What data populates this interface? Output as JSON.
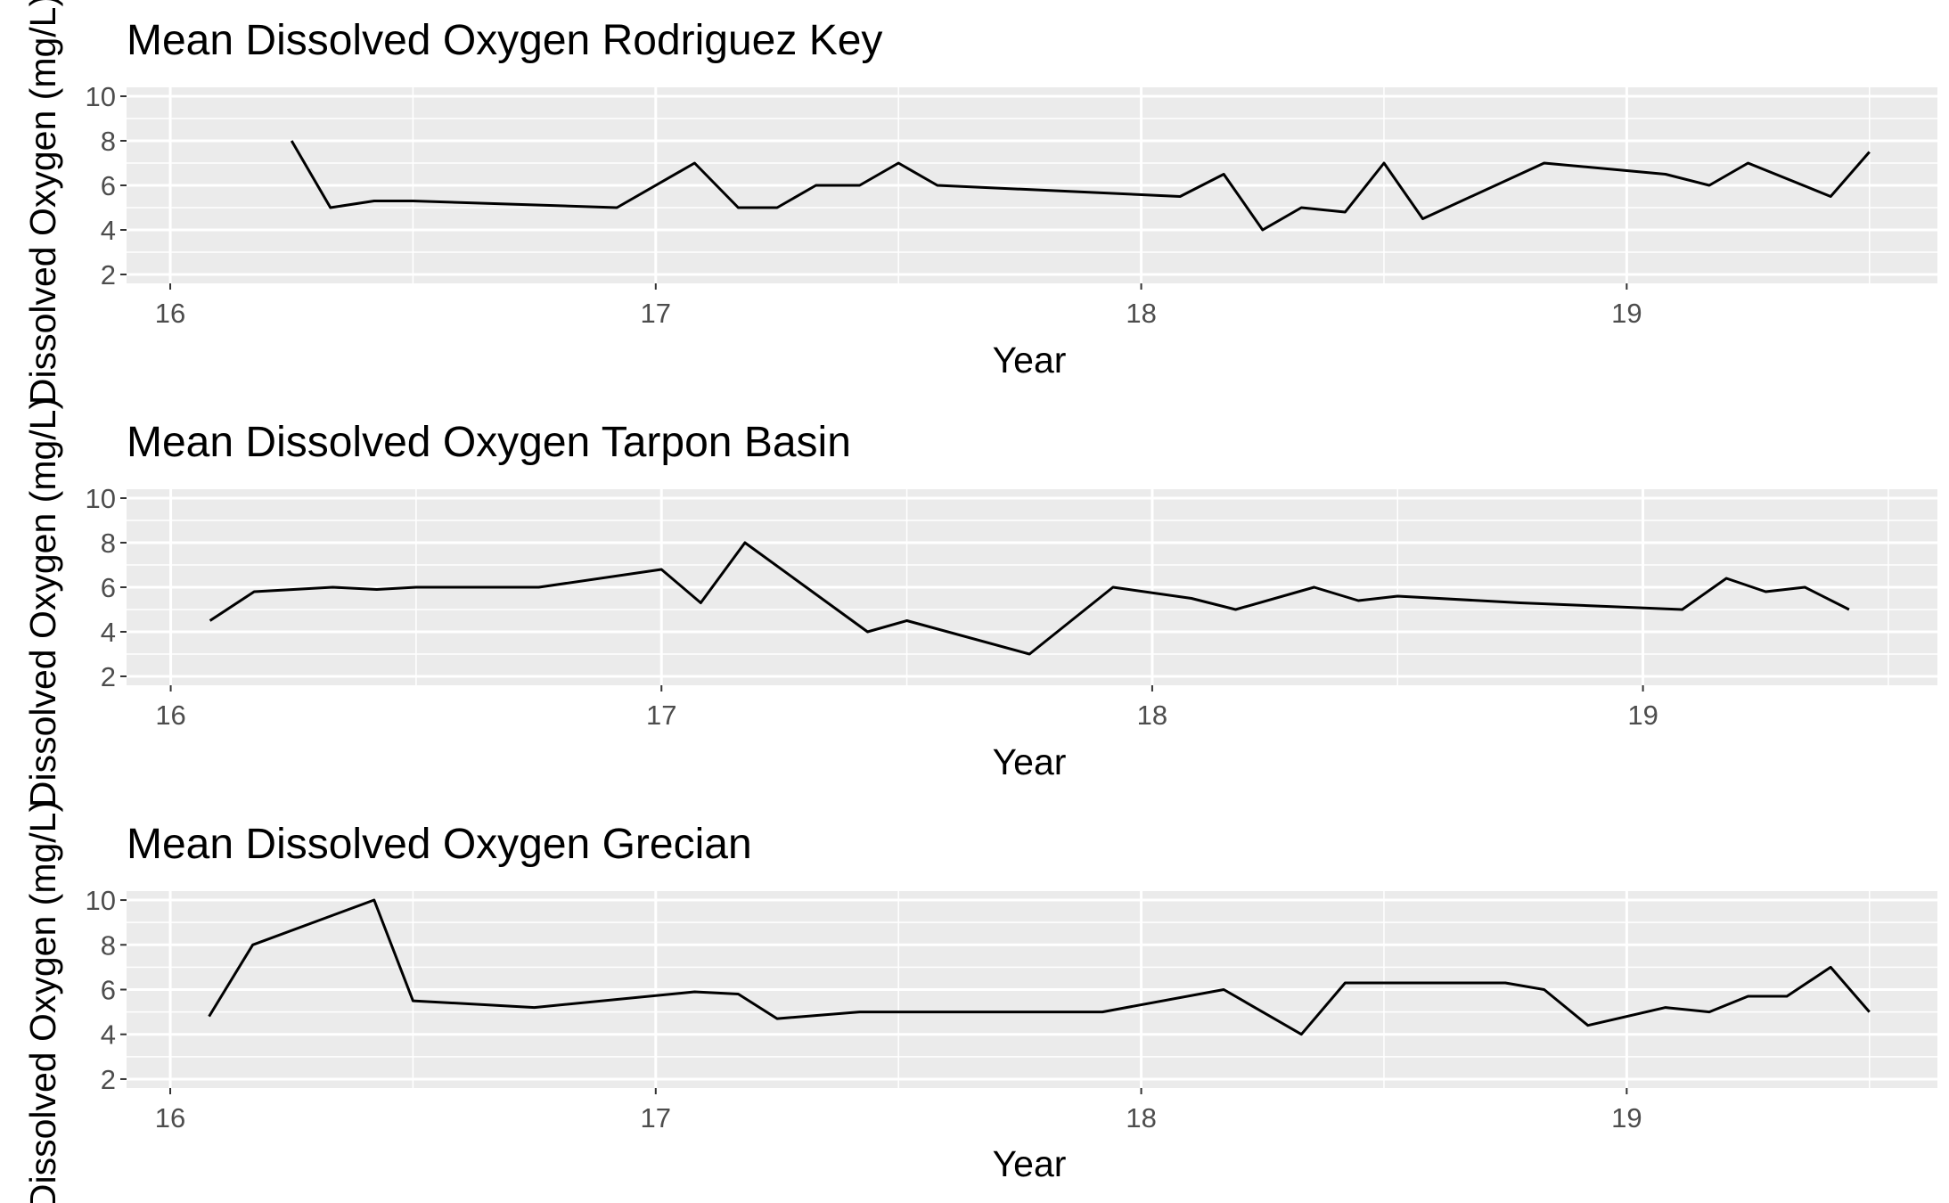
{
  "chart_data": [
    {
      "type": "line",
      "title": "Mean Dissolved Oxygen Rodriguez Key",
      "xlabel": "Year",
      "ylabel": "Dissolved Oxygen (mg/L)",
      "xlim": [
        15.91,
        19.64
      ],
      "ylim": [
        1.6,
        10.4
      ],
      "xticks": [
        16,
        17,
        18,
        19
      ],
      "yticks": [
        2,
        4,
        6,
        8,
        10
      ],
      "grid": true,
      "x": [
        16.25,
        16.33,
        16.42,
        16.5,
        16.92,
        17.08,
        17.17,
        17.25,
        17.33,
        17.42,
        17.5,
        17.58,
        18.08,
        18.17,
        18.25,
        18.33,
        18.42,
        18.5,
        18.58,
        18.83,
        19.08,
        19.17,
        19.25,
        19.42,
        19.5
      ],
      "values": [
        8.0,
        5.0,
        5.3,
        5.3,
        5.0,
        7.0,
        5.0,
        5.0,
        6.0,
        6.0,
        7.0,
        6.0,
        5.5,
        6.5,
        4.0,
        5.0,
        4.8,
        7.0,
        4.5,
        7.0,
        6.5,
        6.0,
        7.0,
        5.5,
        7.5
      ]
    },
    {
      "type": "line",
      "title": "Mean Dissolved Oxygen Tarpon Basin",
      "xlabel": "Year",
      "ylabel": "Dissolved Oxygen (mg/L)",
      "xlim": [
        15.91,
        19.6
      ],
      "ylim": [
        1.6,
        10.4
      ],
      "xticks": [
        16,
        17,
        18,
        19
      ],
      "yticks": [
        2,
        4,
        6,
        8,
        10
      ],
      "grid": true,
      "x": [
        16.08,
        16.17,
        16.33,
        16.42,
        16.5,
        16.75,
        17.0,
        17.08,
        17.17,
        17.42,
        17.5,
        17.75,
        17.92,
        18.08,
        18.17,
        18.33,
        18.42,
        18.5,
        18.75,
        19.08,
        19.17,
        19.25,
        19.33,
        19.42
      ],
      "values": [
        4.5,
        5.8,
        6.0,
        5.9,
        6.0,
        6.0,
        6.8,
        5.3,
        8.0,
        4.0,
        4.5,
        3.0,
        6.0,
        5.5,
        5.0,
        6.0,
        5.4,
        5.6,
        5.3,
        5.0,
        6.4,
        5.8,
        6.0,
        5.0
      ]
    },
    {
      "type": "line",
      "title": "Mean Dissolved Oxygen Grecian",
      "xlabel": "Year",
      "ylabel": "Dissolved Oxygen (mg/L)",
      "xlim": [
        15.91,
        19.64
      ],
      "ylim": [
        1.6,
        10.4
      ],
      "xticks": [
        16,
        17,
        18,
        19
      ],
      "yticks": [
        2,
        4,
        6,
        8,
        10
      ],
      "grid": true,
      "x": [
        16.08,
        16.17,
        16.42,
        16.5,
        16.75,
        17.08,
        17.17,
        17.25,
        17.42,
        17.92,
        18.17,
        18.33,
        18.42,
        18.75,
        18.83,
        18.92,
        19.08,
        19.17,
        19.25,
        19.33,
        19.42,
        19.5
      ],
      "values": [
        4.8,
        8.0,
        10.0,
        5.5,
        5.2,
        5.9,
        5.8,
        4.7,
        5.0,
        5.0,
        6.0,
        4.0,
        6.3,
        6.3,
        6.0,
        4.4,
        5.2,
        5.0,
        5.7,
        5.7,
        7.0,
        5.0
      ]
    }
  ]
}
